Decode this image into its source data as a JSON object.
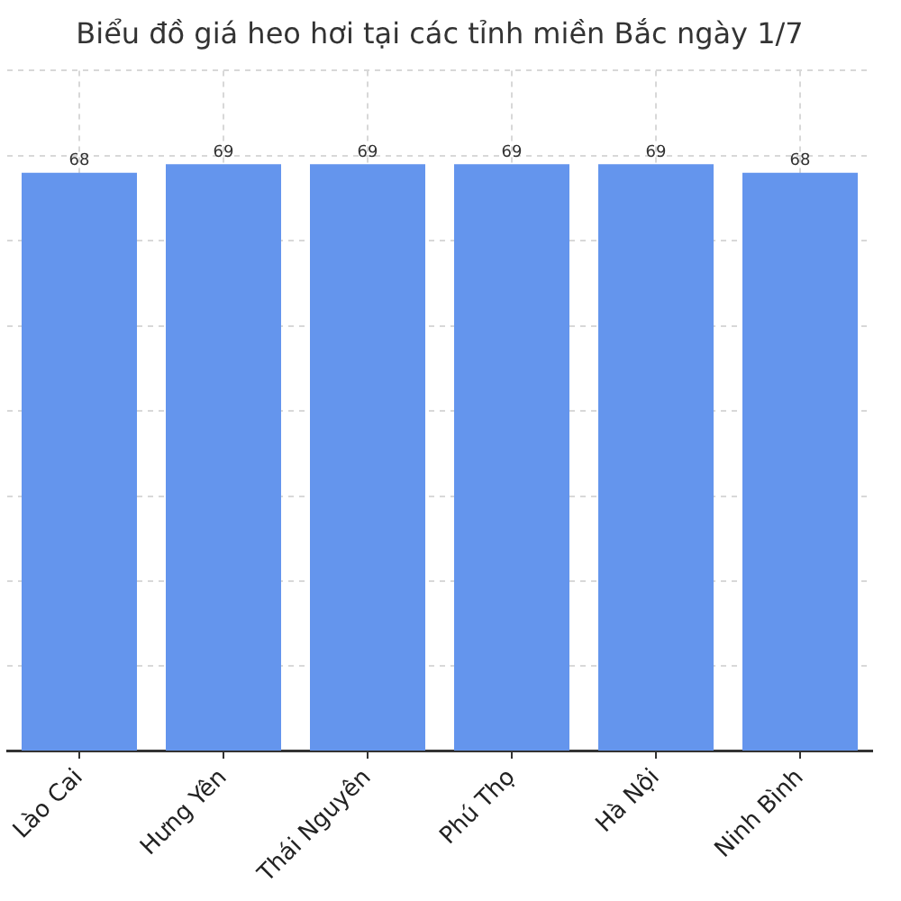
{
  "chart_data": {
    "type": "bar",
    "title": "Biểu đồ giá heo hơi tại các tỉnh miền Bắc ngày 1/7",
    "categories": [
      "Lào Cai",
      "Hưng Yên",
      "Thái Nguyên",
      "Phú Thọ",
      "Hà Nội",
      "Ninh Bình"
    ],
    "values": [
      68,
      69,
      69,
      69,
      69,
      68
    ],
    "color": "#6495ed",
    "ylim": [
      0,
      80
    ],
    "yticks": [
      {
        "value": 0,
        "label": null
      },
      {
        "value": 10,
        "label": null
      },
      {
        "value": 20,
        "label": null
      },
      {
        "value": 30,
        "label": null
      },
      {
        "value": 40,
        "label": null
      },
      {
        "value": 50,
        "label": null
      },
      {
        "value": 60,
        "label": null
      },
      {
        "value": 70,
        "label": null
      },
      {
        "value": 80,
        "label": null
      }
    ],
    "tick_labels": "x",
    "grid": true,
    "data_labels": true
  }
}
